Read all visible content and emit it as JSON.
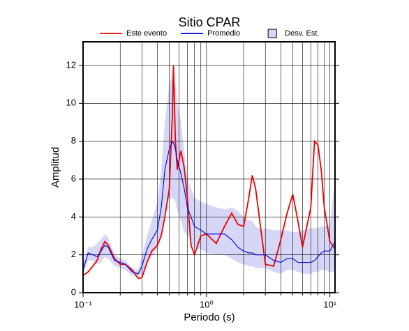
{
  "chart_data": {
    "type": "line",
    "title": "Sitio CPAR",
    "xlabel": "Periodo (s)",
    "ylabel": "Amplitud",
    "xscale": "log",
    "grid": true,
    "legend": "top",
    "xlim": [
      0.1,
      11
    ],
    "ylim": [
      0,
      13.25
    ],
    "xticks": [
      {
        "value": 0.1,
        "label": "10⁻¹"
      },
      {
        "value": 1,
        "label": "10⁰"
      },
      {
        "value": 10,
        "label": "10¹"
      }
    ],
    "xminorticks": [
      0.2,
      0.3,
      0.4,
      0.5,
      0.6,
      0.7,
      0.8,
      0.9,
      2,
      3,
      4,
      5,
      6,
      7,
      8,
      9
    ],
    "yticks": [
      0,
      2,
      4,
      6,
      8,
      10,
      12
    ],
    "x": [
      0.1,
      0.11,
      0.12,
      0.13,
      0.14,
      0.15,
      0.16,
      0.18,
      0.2,
      0.22,
      0.25,
      0.28,
      0.3,
      0.33,
      0.36,
      0.4,
      0.43,
      0.46,
      0.5,
      0.53,
      0.54,
      0.56,
      0.58,
      0.62,
      0.66,
      0.7,
      0.75,
      0.8,
      0.9,
      1.0,
      1.2,
      1.4,
      1.6,
      1.8,
      2.0,
      2.2,
      2.35,
      2.5,
      2.8,
      3.0,
      3.5,
      4.0,
      4.5,
      5.0,
      5.5,
      6.0,
      7.0,
      7.5,
      8.0,
      8.5,
      9.0,
      10,
      11
    ],
    "band": {
      "name": "Desv. Est.",
      "color": "#d6d6f7",
      "upper": [
        1.6,
        2.4,
        2.4,
        2.6,
        2.8,
        3.1,
        2.9,
        2.0,
        1.8,
        1.7,
        1.3,
        1.2,
        1.9,
        3.0,
        3.8,
        4.8,
        6.5,
        9.0,
        11.0,
        11.5,
        11.4,
        11.0,
        10.0,
        9.0,
        7.5,
        6.0,
        5.5,
        5.0,
        4.8,
        4.7,
        4.5,
        4.4,
        4.5,
        4.3,
        4.0,
        3.8,
        3.8,
        3.5,
        3.3,
        3.4,
        3.3,
        3.3,
        3.3,
        3.2,
        3.2,
        3.3,
        3.4,
        3.4,
        3.4,
        3.5,
        3.5,
        3.6,
        6.0
      ],
      "lower": [
        0.9,
        1.7,
        1.7,
        1.5,
        1.6,
        1.9,
        1.8,
        1.4,
        1.3,
        1.2,
        0.9,
        0.8,
        1.0,
        1.6,
        1.9,
        2.3,
        3.0,
        4.3,
        5.0,
        5.0,
        5.0,
        4.8,
        4.3,
        3.8,
        3.2,
        3.0,
        2.6,
        2.4,
        2.3,
        2.1,
        2.0,
        2.0,
        1.8,
        1.6,
        1.5,
        1.4,
        1.4,
        1.3,
        1.3,
        1.3,
        1.1,
        1.0,
        1.2,
        1.2,
        1.1,
        1.0,
        1.0,
        1.1,
        1.1,
        1.2,
        1.2,
        1.1,
        1.1
      ]
    },
    "series": [
      {
        "name": "Este evento",
        "color": "#ee0000",
        "values": [
          0.9,
          1.1,
          1.4,
          1.7,
          2.3,
          2.7,
          2.5,
          1.8,
          1.5,
          1.5,
          1.2,
          0.75,
          0.8,
          1.6,
          2.2,
          2.5,
          3.0,
          4.0,
          5.5,
          9.5,
          12.0,
          8.0,
          6.5,
          7.5,
          6.6,
          5.0,
          2.5,
          2.0,
          3.0,
          3.1,
          2.6,
          3.5,
          4.2,
          3.6,
          3.5,
          5.0,
          6.2,
          5.5,
          3.0,
          1.5,
          1.4,
          2.8,
          4.2,
          5.2,
          3.8,
          2.4,
          4.5,
          8.0,
          7.8,
          6.5,
          4.5,
          2.7,
          2.3
        ]
      },
      {
        "name": "Promedio",
        "color": "#0000dd",
        "values": [
          1.2,
          2.1,
          2.0,
          1.9,
          2.2,
          2.5,
          2.4,
          1.7,
          1.6,
          1.5,
          1.1,
          1.0,
          1.4,
          2.3,
          2.8,
          3.3,
          4.5,
          6.5,
          7.6,
          8.0,
          7.9,
          7.6,
          7.0,
          6.3,
          5.5,
          4.5,
          4.0,
          3.5,
          3.3,
          3.1,
          3.1,
          3.1,
          2.8,
          2.4,
          2.2,
          2.1,
          2.1,
          2.0,
          2.0,
          2.0,
          1.7,
          1.6,
          1.8,
          1.8,
          1.6,
          1.6,
          1.6,
          1.7,
          1.9,
          2.1,
          2.2,
          2.2,
          2.7
        ]
      }
    ]
  }
}
